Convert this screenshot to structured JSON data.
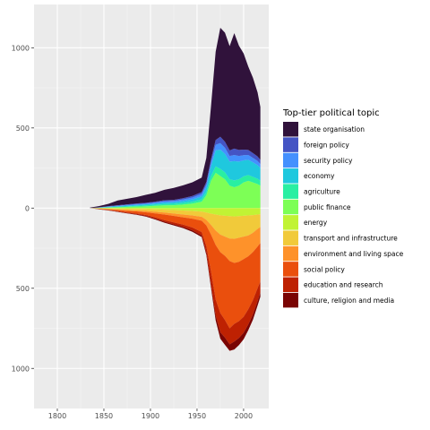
{
  "chart_data": {
    "type": "area",
    "subtype": "streamgraph",
    "title": "",
    "xlabel": "",
    "ylabel": "",
    "xlim": [
      1775,
      2027
    ],
    "ylim": [
      -1250,
      1270
    ],
    "x_ticks": [
      1800,
      1850,
      1900,
      1950,
      2000
    ],
    "x_tick_labels": [
      "1800",
      "1850",
      "1900",
      "1950",
      "2000"
    ],
    "y_ticks": [
      1000,
      500,
      0,
      -500,
      -1000
    ],
    "y_tick_labels": [
      "1000",
      "500",
      "0",
      "500",
      "1000"
    ],
    "grid": true,
    "legend": {
      "title": "Top-tier political topic",
      "position": "right"
    },
    "x": [
      1835,
      1845,
      1855,
      1865,
      1875,
      1885,
      1895,
      1905,
      1915,
      1925,
      1935,
      1945,
      1955,
      1960,
      1965,
      1970,
      1975,
      1980,
      1985,
      1990,
      1995,
      2000,
      2005,
      2010,
      2015,
      2018
    ],
    "series": [
      {
        "name": "state organisation",
        "side": "top",
        "color": "#30123b",
        "values": [
          3,
          8,
          15,
          30,
          35,
          40,
          50,
          55,
          65,
          75,
          80,
          85,
          90,
          150,
          330,
          550,
          680,
          680,
          650,
          720,
          650,
          600,
          520,
          470,
          400,
          330
        ]
      },
      {
        "name": "foreign policy",
        "side": "top",
        "color": "#4454c4",
        "values": [
          0,
          1,
          2,
          3,
          3,
          4,
          4,
          5,
          6,
          6,
          8,
          10,
          12,
          15,
          20,
          30,
          40,
          38,
          35,
          40,
          38,
          35,
          32,
          30,
          28,
          26
        ]
      },
      {
        "name": "security policy",
        "side": "top",
        "color": "#4490fe",
        "values": [
          0,
          1,
          2,
          3,
          4,
          5,
          5,
          6,
          8,
          8,
          10,
          12,
          15,
          18,
          25,
          35,
          40,
          38,
          35,
          38,
          35,
          32,
          30,
          28,
          26,
          24
        ]
      },
      {
        "name": "economy",
        "side": "top",
        "color": "#1fc8de",
        "values": [
          0,
          1,
          3,
          4,
          5,
          6,
          7,
          8,
          10,
          10,
          12,
          14,
          18,
          30,
          60,
          100,
          120,
          115,
          110,
          120,
          110,
          100,
          95,
          90,
          85,
          80
        ]
      },
      {
        "name": "agriculture",
        "side": "top",
        "color": "#29efa2",
        "values": [
          0,
          1,
          2,
          3,
          4,
          5,
          6,
          7,
          8,
          9,
          10,
          12,
          15,
          20,
          30,
          40,
          45,
          43,
          40,
          43,
          40,
          38,
          36,
          35,
          33,
          31
        ]
      },
      {
        "name": "public finance",
        "side": "top",
        "color": "#7dff56",
        "values": [
          0,
          1,
          3,
          5,
          7,
          9,
          11,
          14,
          17,
          18,
          22,
          28,
          40,
          80,
          170,
          220,
          200,
          180,
          140,
          130,
          140,
          160,
          170,
          160,
          150,
          140
        ]
      },
      {
        "name": "energy",
        "side": "bottom",
        "color": "#c1f334",
        "values": [
          0,
          1,
          2,
          3,
          4,
          5,
          6,
          8,
          10,
          12,
          15,
          18,
          22,
          28,
          35,
          40,
          45,
          48,
          50,
          52,
          50,
          48,
          46,
          44,
          40,
          38
        ]
      },
      {
        "name": "transport and infrastructure",
        "side": "bottom",
        "color": "#f1ca3a",
        "values": [
          0,
          2,
          4,
          6,
          8,
          10,
          12,
          15,
          18,
          22,
          25,
          28,
          32,
          45,
          70,
          100,
          120,
          130,
          140,
          140,
          135,
          130,
          125,
          110,
          90,
          80
        ]
      },
      {
        "name": "environment and living space",
        "side": "bottom",
        "color": "#fe922a",
        "values": [
          0,
          1,
          2,
          3,
          5,
          6,
          8,
          10,
          12,
          15,
          18,
          20,
          25,
          35,
          60,
          90,
          110,
          120,
          140,
          150,
          150,
          140,
          130,
          120,
          110,
          100
        ]
      },
      {
        "name": "social policy",
        "side": "bottom",
        "color": "#ea4f0d",
        "values": [
          0,
          2,
          4,
          7,
          10,
          13,
          17,
          25,
          35,
          40,
          45,
          55,
          70,
          130,
          230,
          340,
          380,
          400,
          420,
          380,
          370,
          360,
          330,
          300,
          260,
          240
        ]
      },
      {
        "name": "education and research",
        "side": "bottom",
        "color": "#be2102",
        "values": [
          0,
          1,
          2,
          3,
          4,
          5,
          6,
          8,
          10,
          12,
          14,
          18,
          22,
          40,
          80,
          100,
          120,
          110,
          100,
          110,
          105,
          100,
          95,
          90,
          80,
          70
        ]
      },
      {
        "name": "culture, religion and media",
        "side": "bottom",
        "color": "#7a0403",
        "values": [
          0,
          1,
          1,
          2,
          2,
          3,
          4,
          5,
          6,
          7,
          8,
          9,
          10,
          15,
          22,
          30,
          40,
          45,
          40,
          50,
          45,
          40,
          36,
          32,
          28,
          25
        ]
      }
    ]
  }
}
